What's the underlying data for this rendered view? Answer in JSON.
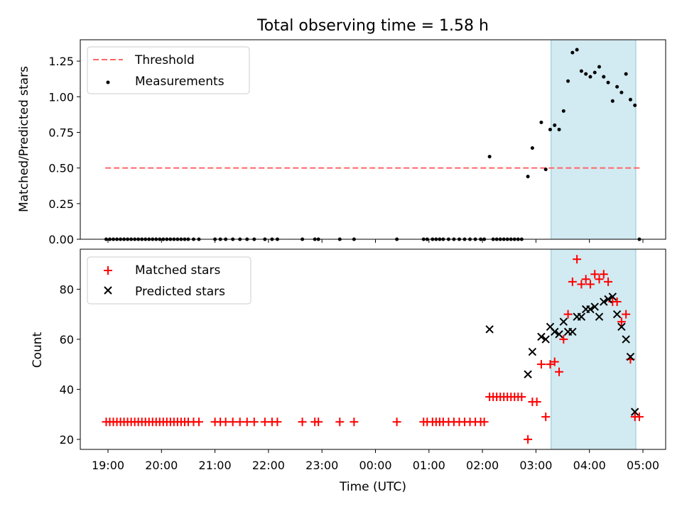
{
  "colors": {
    "matched": "#ff0000",
    "predicted": "#000000",
    "threshold": "#ff6666",
    "span": "#add8e6",
    "measurement": "#000000"
  },
  "chart_data": [
    {
      "type": "scatter",
      "title": "Total observing time = 1.58 h",
      "xlabel": "",
      "ylabel": "Matched/Predicted stars",
      "ylim": [
        0,
        1.4
      ],
      "yticks": [
        "0.00",
        "0.25",
        "0.50",
        "0.75",
        "1.00",
        "1.25"
      ],
      "legend": [
        "Threshold",
        "Measurements"
      ],
      "legend_position": "top-left",
      "threshold": {
        "name": "Threshold",
        "value": 0.5,
        "x_start": "18:57",
        "x_end": "04:57"
      },
      "highlight_span": {
        "start": "03:17",
        "end": "04:52"
      },
      "series": [
        {
          "name": "Measurements",
          "points": [
            [
              "18:58",
              0
            ],
            [
              "19:02",
              0
            ],
            [
              "19:06",
              0
            ],
            [
              "19:10",
              0
            ],
            [
              "19:14",
              0
            ],
            [
              "19:18",
              0
            ],
            [
              "19:22",
              0
            ],
            [
              "19:26",
              0
            ],
            [
              "19:30",
              0
            ],
            [
              "19:34",
              0
            ],
            [
              "19:38",
              0
            ],
            [
              "19:42",
              0
            ],
            [
              "19:46",
              0
            ],
            [
              "19:50",
              0
            ],
            [
              "19:54",
              0
            ],
            [
              "19:58",
              0
            ],
            [
              "20:02",
              0
            ],
            [
              "20:06",
              0
            ],
            [
              "20:10",
              0
            ],
            [
              "20:14",
              0
            ],
            [
              "20:18",
              0
            ],
            [
              "20:22",
              0
            ],
            [
              "20:26",
              0
            ],
            [
              "20:30",
              0
            ],
            [
              "20:36",
              0
            ],
            [
              "20:42",
              0
            ],
            [
              "21:00",
              0
            ],
            [
              "21:06",
              0
            ],
            [
              "21:12",
              0
            ],
            [
              "21:20",
              0
            ],
            [
              "21:28",
              0
            ],
            [
              "21:36",
              0
            ],
            [
              "21:44",
              0
            ],
            [
              "21:56",
              0
            ],
            [
              "22:04",
              0
            ],
            [
              "22:10",
              0
            ],
            [
              "22:38",
              0
            ],
            [
              "22:52",
              0
            ],
            [
              "22:56",
              0
            ],
            [
              "23:20",
              0
            ],
            [
              "23:36",
              0
            ],
            [
              "00:24",
              0
            ],
            [
              "00:54",
              0
            ],
            [
              "00:58",
              0
            ],
            [
              "01:04",
              0
            ],
            [
              "01:08",
              0
            ],
            [
              "01:12",
              0
            ],
            [
              "01:16",
              0
            ],
            [
              "01:22",
              0
            ],
            [
              "01:28",
              0
            ],
            [
              "01:34",
              0
            ],
            [
              "01:40",
              0
            ],
            [
              "01:46",
              0
            ],
            [
              "01:52",
              0
            ],
            [
              "01:58",
              0
            ],
            [
              "02:02",
              0
            ],
            [
              "02:08",
              0.58
            ],
            [
              "02:12",
              0
            ],
            [
              "02:16",
              0
            ],
            [
              "02:20",
              0
            ],
            [
              "02:24",
              0
            ],
            [
              "02:28",
              0
            ],
            [
              "02:32",
              0
            ],
            [
              "02:36",
              0
            ],
            [
              "02:40",
              0
            ],
            [
              "02:44",
              0
            ],
            [
              "02:51",
              0.44
            ],
            [
              "02:56",
              0.64
            ],
            [
              "03:06",
              0.82
            ],
            [
              "03:11",
              0.49
            ],
            [
              "03:16",
              0.77
            ],
            [
              "03:21",
              0.8
            ],
            [
              "03:26",
              0.77
            ],
            [
              "03:31",
              0.9
            ],
            [
              "03:36",
              1.11
            ],
            [
              "03:41",
              1.31
            ],
            [
              "03:46",
              1.33
            ],
            [
              "03:51",
              1.18
            ],
            [
              "03:56",
              1.16
            ],
            [
              "04:01",
              1.14
            ],
            [
              "04:06",
              1.17
            ],
            [
              "04:11",
              1.21
            ],
            [
              "04:16",
              1.14
            ],
            [
              "04:21",
              1.1
            ],
            [
              "04:26",
              0.97
            ],
            [
              "04:31",
              1.07
            ],
            [
              "04:36",
              1.03
            ],
            [
              "04:41",
              1.16
            ],
            [
              "04:46",
              0.98
            ],
            [
              "04:51",
              0.94
            ],
            [
              "04:56",
              0
            ]
          ]
        }
      ]
    },
    {
      "type": "scatter",
      "title": "",
      "xlabel": "Time (UTC)",
      "ylabel": "Count",
      "ylim": [
        16,
        96
      ],
      "yticks": [
        "20",
        "40",
        "60",
        "80"
      ],
      "xticks": [
        "19:00",
        "20:00",
        "21:00",
        "22:00",
        "23:00",
        "00:00",
        "01:00",
        "02:00",
        "03:00",
        "04:00",
        "05:00"
      ],
      "legend": [
        "Matched stars",
        "Predicted stars"
      ],
      "legend_position": "top-left",
      "highlight_span": {
        "start": "03:17",
        "end": "04:52"
      },
      "series": [
        {
          "name": "Matched stars",
          "marker": "+",
          "points": [
            [
              "18:58",
              27
            ],
            [
              "19:02",
              27
            ],
            [
              "19:06",
              27
            ],
            [
              "19:10",
              27
            ],
            [
              "19:14",
              27
            ],
            [
              "19:18",
              27
            ],
            [
              "19:22",
              27
            ],
            [
              "19:26",
              27
            ],
            [
              "19:30",
              27
            ],
            [
              "19:34",
              27
            ],
            [
              "19:38",
              27
            ],
            [
              "19:42",
              27
            ],
            [
              "19:46",
              27
            ],
            [
              "19:50",
              27
            ],
            [
              "19:54",
              27
            ],
            [
              "19:58",
              27
            ],
            [
              "20:02",
              27
            ],
            [
              "20:06",
              27
            ],
            [
              "20:10",
              27
            ],
            [
              "20:14",
              27
            ],
            [
              "20:18",
              27
            ],
            [
              "20:22",
              27
            ],
            [
              "20:26",
              27
            ],
            [
              "20:30",
              27
            ],
            [
              "20:36",
              27
            ],
            [
              "20:42",
              27
            ],
            [
              "21:00",
              27
            ],
            [
              "21:06",
              27
            ],
            [
              "21:12",
              27
            ],
            [
              "21:20",
              27
            ],
            [
              "21:28",
              27
            ],
            [
              "21:36",
              27
            ],
            [
              "21:44",
              27
            ],
            [
              "21:56",
              27
            ],
            [
              "22:04",
              27
            ],
            [
              "22:10",
              27
            ],
            [
              "22:38",
              27
            ],
            [
              "22:52",
              27
            ],
            [
              "22:56",
              27
            ],
            [
              "23:20",
              27
            ],
            [
              "23:36",
              27
            ],
            [
              "00:24",
              27
            ],
            [
              "00:54",
              27
            ],
            [
              "00:58",
              27
            ],
            [
              "01:04",
              27
            ],
            [
              "01:08",
              27
            ],
            [
              "01:12",
              27
            ],
            [
              "01:16",
              27
            ],
            [
              "01:22",
              27
            ],
            [
              "01:28",
              27
            ],
            [
              "01:34",
              27
            ],
            [
              "01:40",
              27
            ],
            [
              "01:46",
              27
            ],
            [
              "01:52",
              27
            ],
            [
              "01:58",
              27
            ],
            [
              "02:02",
              27
            ],
            [
              "02:08",
              37
            ],
            [
              "02:12",
              37
            ],
            [
              "02:16",
              37
            ],
            [
              "02:20",
              37
            ],
            [
              "02:24",
              37
            ],
            [
              "02:28",
              37
            ],
            [
              "02:32",
              37
            ],
            [
              "02:36",
              37
            ],
            [
              "02:40",
              37
            ],
            [
              "02:44",
              37
            ],
            [
              "02:51",
              20
            ],
            [
              "02:56",
              35
            ],
            [
              "03:01",
              35
            ],
            [
              "03:06",
              50
            ],
            [
              "03:11",
              29
            ],
            [
              "03:16",
              50
            ],
            [
              "03:21",
              51
            ],
            [
              "03:26",
              47
            ],
            [
              "03:31",
              60
            ],
            [
              "03:36",
              70
            ],
            [
              "03:41",
              83
            ],
            [
              "03:46",
              92
            ],
            [
              "03:51",
              82
            ],
            [
              "03:56",
              84
            ],
            [
              "04:01",
              82
            ],
            [
              "04:06",
              86
            ],
            [
              "04:11",
              84
            ],
            [
              "04:16",
              86
            ],
            [
              "04:21",
              83
            ],
            [
              "04:26",
              75
            ],
            [
              "04:31",
              75
            ],
            [
              "04:36",
              67
            ],
            [
              "04:41",
              70
            ],
            [
              "04:46",
              52
            ],
            [
              "04:51",
              29
            ],
            [
              "04:56",
              29
            ]
          ]
        },
        {
          "name": "Predicted stars",
          "marker": "x",
          "points": [
            [
              "02:08",
              64
            ],
            [
              "02:51",
              46
            ],
            [
              "02:56",
              55
            ],
            [
              "03:06",
              61
            ],
            [
              "03:11",
              60
            ],
            [
              "03:16",
              65
            ],
            [
              "03:21",
              63
            ],
            [
              "03:26",
              62
            ],
            [
              "03:31",
              67
            ],
            [
              "03:36",
              63
            ],
            [
              "03:41",
              63
            ],
            [
              "03:46",
              69
            ],
            [
              "03:51",
              69
            ],
            [
              "03:56",
              72
            ],
            [
              "04:01",
              72
            ],
            [
              "04:06",
              73
            ],
            [
              "04:11",
              69
            ],
            [
              "04:16",
              75
            ],
            [
              "04:21",
              76
            ],
            [
              "04:26",
              77
            ],
            [
              "04:31",
              70
            ],
            [
              "04:36",
              65
            ],
            [
              "04:41",
              60
            ],
            [
              "04:46",
              53
            ],
            [
              "04:51",
              31
            ]
          ]
        }
      ]
    }
  ]
}
